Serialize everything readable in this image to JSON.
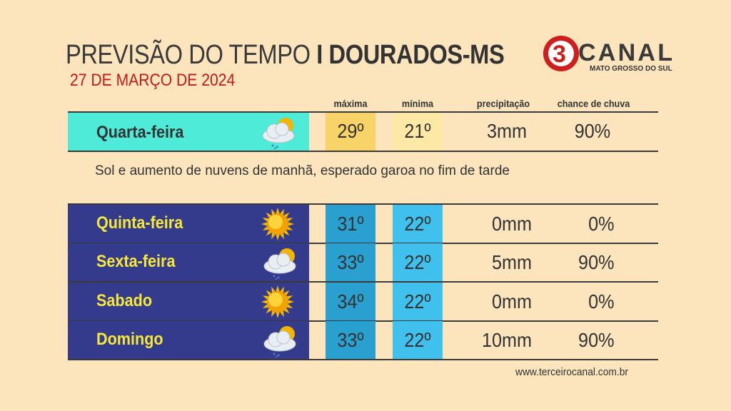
{
  "header": {
    "title_light": "PREVISÃO DO TEMPO",
    "title_bold": "I DOURADOS-MS",
    "date": "27 DE MARÇO DE 2024"
  },
  "logo": {
    "number": "3",
    "name": "CANAL",
    "region": "MATO GROSSO DO SUL"
  },
  "columns": {
    "max": "máxima",
    "min": "mínima",
    "precip": "precipitação",
    "chance": "chance de chuva"
  },
  "today": {
    "day": "Quarta-feira",
    "icon": "sun-cloud-rain-icon",
    "max": "29º",
    "min": "21º",
    "precip": "3mm",
    "chance": "90%",
    "description": "Sol e aumento de nuvens de manhã, esperado garoa no fim de tarde"
  },
  "days": [
    {
      "day": "Quinta-feira",
      "icon": "sun-icon",
      "max": "31º",
      "min": "22º",
      "precip": "0mm",
      "chance": "0%"
    },
    {
      "day": "Sexta-feira",
      "icon": "sun-cloud-rain-icon",
      "max": "33º",
      "min": "22º",
      "precip": "5mm",
      "chance": "90%"
    },
    {
      "day": "Sabado",
      "icon": "sun-icon",
      "max": "34º",
      "min": "22º",
      "precip": "0mm",
      "chance": "0%"
    },
    {
      "day": "Domingo",
      "icon": "sun-cloud-rain-icon",
      "max": "33º",
      "min": "22º",
      "precip": "10mm",
      "chance": "90%"
    }
  ],
  "footer": {
    "website": "www.terceirocanal.com.br"
  },
  "colors": {
    "background": "#fce5bd",
    "today_cell": "#4eecd8",
    "today_max": "#f8d468",
    "today_min": "#fde9a5",
    "future_cell": "#353b8c",
    "future_max": "#2aa0d0",
    "future_min": "#40c0ec",
    "day_text_future": "#f5e83a",
    "date": "#c21b1b"
  }
}
